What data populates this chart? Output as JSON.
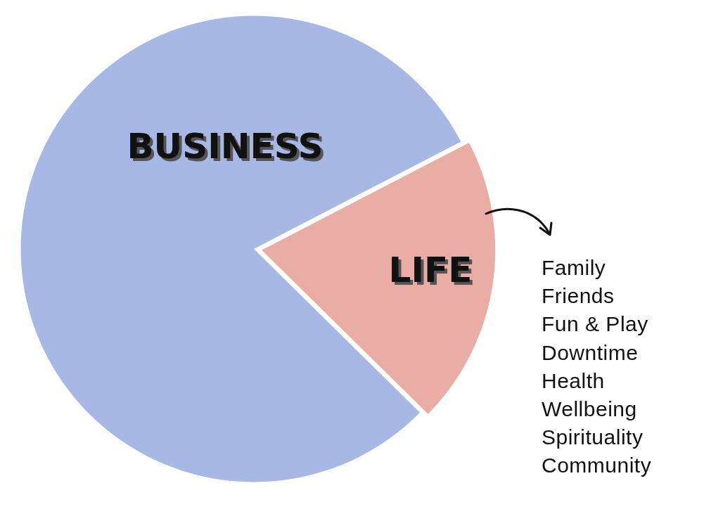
{
  "chart_data": {
    "type": "pie",
    "categories": [
      "BUSINESS",
      "LIFE"
    ],
    "values": [
      80,
      20
    ],
    "colors": [
      "#a7b8e4",
      "#eaada6"
    ],
    "legend": false,
    "annotations": [
      "Family",
      "Friends",
      "Fun & Play",
      "Downtime",
      "Health",
      "Wellbeing",
      "Spirituality",
      "Community"
    ]
  }
}
